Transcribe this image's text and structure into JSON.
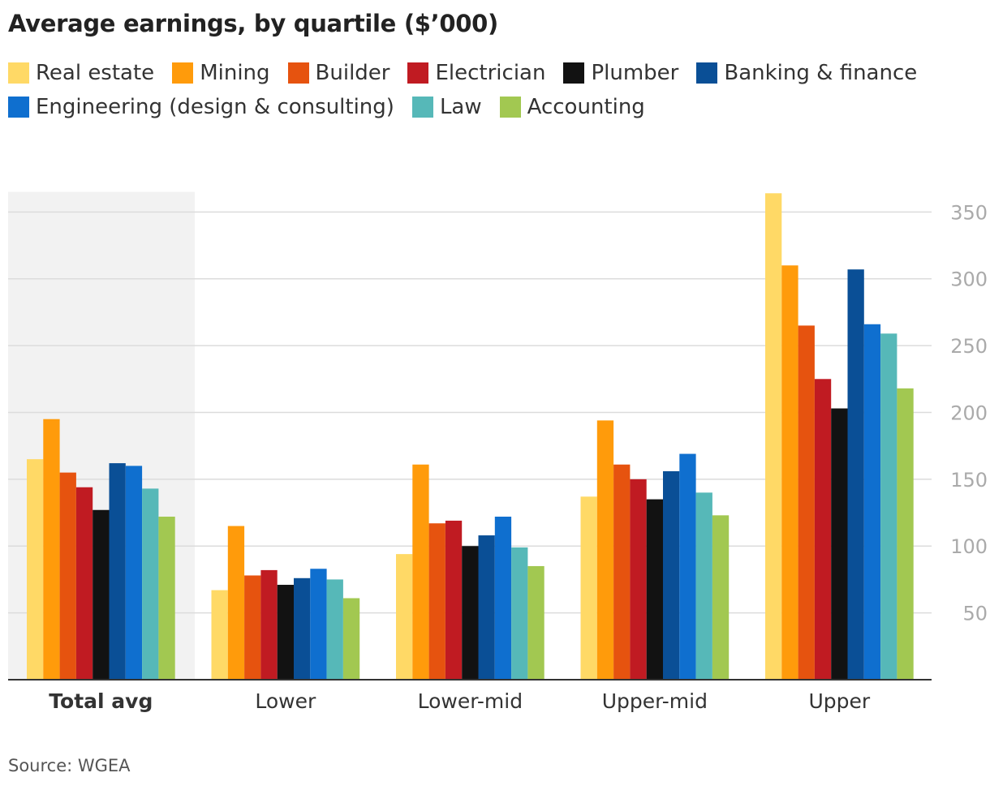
{
  "title": "Average earnings, by quartile ($’000)",
  "source": "Source: WGEA",
  "chart_data": {
    "type": "bar",
    "title": "Average earnings, by quartile ($’000)",
    "xlabel": "",
    "ylabel": "",
    "ylim": [
      0,
      365
    ],
    "yticks": [
      50,
      100,
      150,
      200,
      250,
      300,
      350
    ],
    "grid": true,
    "y_axis_side": "right",
    "highlighted_category": "Total avg",
    "categories": [
      "Total avg",
      "Lower",
      "Lower-mid",
      "Upper-mid",
      "Upper"
    ],
    "series": [
      {
        "name": "Real estate",
        "color": "#ffd966",
        "values": [
          165,
          67,
          94,
          137,
          364
        ]
      },
      {
        "name": "Mining",
        "color": "#ff9b0b",
        "values": [
          195,
          115,
          161,
          194,
          310
        ]
      },
      {
        "name": "Builder",
        "color": "#e6530f",
        "values": [
          155,
          78,
          117,
          161,
          265
        ]
      },
      {
        "name": "Electrician",
        "color": "#c01b22",
        "values": [
          144,
          82,
          119,
          150,
          225
        ]
      },
      {
        "name": "Plumber",
        "color": "#121212",
        "values": [
          127,
          71,
          100,
          135,
          203
        ]
      },
      {
        "name": "Banking & finance",
        "color": "#0a4f96",
        "values": [
          162,
          76,
          108,
          156,
          307
        ]
      },
      {
        "name": "Engineering (design & consulting)",
        "color": "#0f6fcf",
        "values": [
          160,
          83,
          122,
          169,
          266
        ]
      },
      {
        "name": "Law",
        "color": "#56b8b8",
        "values": [
          143,
          75,
          99,
          140,
          259
        ]
      },
      {
        "name": "Accounting",
        "color": "#a2c851",
        "values": [
          122,
          61,
          85,
          123,
          218
        ]
      }
    ]
  }
}
